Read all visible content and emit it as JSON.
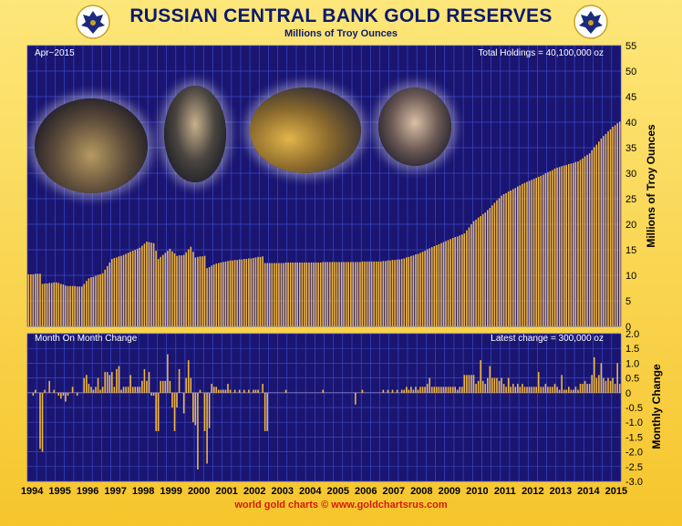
{
  "title": "RUSSIAN CENTRAL BANK GOLD RESERVES",
  "subtitle": "Millions of Troy Ounces",
  "footer": "world gold charts © www.goldchartsrus.com",
  "colors": {
    "background": "#1a1570",
    "grid": "#3b48c8",
    "bar": "#f0b640",
    "frame": "#f8d24a",
    "title": "#0b1a6e",
    "footer": "#d11a0f",
    "axis_text": "#000000",
    "panel_text": "#ffffff"
  },
  "chart_data": [
    {
      "type": "bar",
      "date_label": "Apr~2015",
      "annotation": "Total Holdings = 40,100,000 oz",
      "ylabel": "Millions of Troy Ounces",
      "ylim": [
        0,
        55
      ],
      "yticks": [
        0,
        5,
        10,
        15,
        20,
        25,
        30,
        35,
        40,
        45,
        50,
        55
      ],
      "x_start": "1994-01",
      "x_end": "2015-04",
      "anchors": [
        [
          "1994-01",
          10.2
        ],
        [
          "1994-06",
          10.3
        ],
        [
          "1994-07",
          8.3
        ],
        [
          "1995-01",
          8.6
        ],
        [
          "1995-06",
          7.9
        ],
        [
          "1995-12",
          7.8
        ],
        [
          "1996-03",
          9.4
        ],
        [
          "1996-09",
          10.4
        ],
        [
          "1997-01",
          13.2
        ],
        [
          "1997-06",
          14.0
        ],
        [
          "1998-01",
          15.4
        ],
        [
          "1998-04",
          16.6
        ],
        [
          "1998-07",
          16.3
        ],
        [
          "1998-09",
          13.2
        ],
        [
          "1999-02",
          15.2
        ],
        [
          "1999-05",
          13.8
        ],
        [
          "1999-08",
          14.0
        ],
        [
          "1999-11",
          15.6
        ],
        [
          "2000-01",
          13.5
        ],
        [
          "2000-05",
          13.8
        ],
        [
          "2000-06",
          11.4
        ],
        [
          "2000-10",
          12.3
        ],
        [
          "2001-03",
          12.8
        ],
        [
          "2002-02",
          13.4
        ],
        [
          "2002-06",
          13.7
        ],
        [
          "2002-07",
          12.4
        ],
        [
          "2006-09",
          12.7
        ],
        [
          "2007-06",
          13.2
        ],
        [
          "2008-01",
          14.2
        ],
        [
          "2008-08",
          15.7
        ],
        [
          "2009-01",
          16.7
        ],
        [
          "2009-09",
          18.2
        ],
        [
          "2010-01",
          20.6
        ],
        [
          "2010-06",
          22.3
        ],
        [
          "2011-01",
          25.6
        ],
        [
          "2011-10",
          27.9
        ],
        [
          "2012-06",
          29.5
        ],
        [
          "2013-01",
          31.1
        ],
        [
          "2013-10",
          32.3
        ],
        [
          "2014-03",
          33.9
        ],
        [
          "2014-08",
          36.8
        ],
        [
          "2015-01",
          39.1
        ],
        [
          "2015-04",
          40.1
        ]
      ]
    },
    {
      "type": "bar",
      "title": "Month On Month Change",
      "annotation": "Latest change = 300,000 oz",
      "ylabel": "Monthly Change",
      "ylim": [
        -3.0,
        2.0
      ],
      "yticks": [
        -3.0,
        -2.5,
        -2.0,
        -1.5,
        -1.0,
        -0.5,
        0,
        0.5,
        1.0,
        1.5,
        2.0
      ],
      "x_start": "1994-01",
      "x_end": "2015-04",
      "notable_changes": [
        [
          "1994-03",
          -0.1
        ],
        [
          "1994-06",
          -1.9
        ],
        [
          "1994-10",
          0.4
        ],
        [
          "1995-03",
          -0.2
        ],
        [
          "1995-05",
          -0.3
        ],
        [
          "1995-08",
          0.2
        ],
        [
          "1996-03",
          0.3
        ],
        [
          "1996-07",
          0.5
        ],
        [
          "1996-12",
          0.6
        ],
        [
          "1997-03",
          0.8
        ],
        [
          "1997-04",
          0.9
        ],
        [
          "1997-09",
          0.6
        ],
        [
          "1998-03",
          0.8
        ],
        [
          "1998-05",
          0.7
        ],
        [
          "1998-08",
          -1.3
        ],
        [
          "1998-09",
          -1.3
        ],
        [
          "1999-01",
          1.3
        ],
        [
          "1999-04",
          -1.3
        ],
        [
          "1999-06",
          0.8
        ],
        [
          "1999-08",
          -0.7
        ],
        [
          "1999-10",
          1.1
        ],
        [
          "2000-02",
          -2.6
        ],
        [
          "2000-05",
          -1.3
        ],
        [
          "2000-07",
          -1.2
        ],
        [
          "2001-03",
          0.3
        ],
        [
          "2002-06",
          0.3
        ],
        [
          "2002-08",
          -1.3
        ],
        [
          "2005-10",
          -0.4
        ],
        [
          "2008-06",
          0.5
        ],
        [
          "2009-09",
          0.6
        ],
        [
          "2010-04",
          1.1
        ],
        [
          "2010-08",
          0.9
        ],
        [
          "2011-04",
          0.5
        ],
        [
          "2012-05",
          0.7
        ],
        [
          "2013-03",
          0.6
        ],
        [
          "2014-05",
          1.2
        ],
        [
          "2014-08",
          1.0
        ],
        [
          "2015-03",
          1.0
        ],
        [
          "2015-04",
          0.3
        ]
      ]
    }
  ],
  "x_tick_labels": [
    "1994",
    "1995",
    "1996",
    "1997",
    "1998",
    "1999",
    "2000",
    "2001",
    "2002",
    "2003",
    "2004",
    "2005",
    "2006",
    "2007",
    "2008",
    "2009",
    "2010",
    "2011",
    "2012",
    "2013",
    "2014",
    "2015"
  ],
  "photos": [
    "photo-1",
    "photo-2",
    "photo-3",
    "photo-4"
  ]
}
